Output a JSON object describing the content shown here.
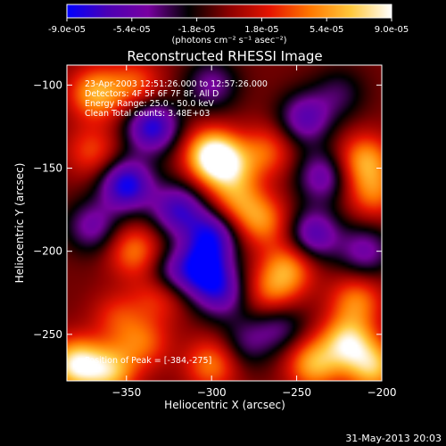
{
  "chart_data": {
    "type": "heatmap",
    "title": "Reconstructed RHESSI Image",
    "xlabel": "Heliocentric X (arcsec)",
    "ylabel": "Heliocentric Y (arcsec)",
    "xlim": [
      -385,
      -200
    ],
    "ylim": [
      -278,
      -88
    ],
    "xticks": [
      -350,
      -300,
      -250,
      -200
    ],
    "yticks": [
      -100,
      -150,
      -200,
      -250
    ],
    "colorbar": {
      "range": [
        -9e-05,
        9e-05
      ],
      "ticks": [
        "-9.0e-05",
        "-5.4e-05",
        "-1.8e-05",
        "1.8e-05",
        "5.4e-05",
        "9.0e-05"
      ],
      "unit_label": "(photons cm⁻² s⁻¹ asec⁻²)",
      "colors": [
        "#0000ff",
        "#4b00b4",
        "#7800a0",
        "#000000",
        "#8c0000",
        "#e61400",
        "#ff7800",
        "#ffc83c",
        "#ffffff"
      ]
    },
    "annotations": [
      "23-Apr-2003 12:51:26.000 to 12:57:26.000",
      "Detectors: 4F 5F 6F 7F 8F, All D",
      "Energy Range: 25.0 - 50.0 keV",
      "Clean     Total counts: 3.48E+03"
    ],
    "peak_label": "Position of Peak = [-384,-275]",
    "peak": [
      -384,
      -275
    ],
    "sources": [
      {
        "x": -300,
        "y": -142,
        "v": 1.0
      },
      {
        "x": -290,
        "y": -150,
        "v": 0.6
      },
      {
        "x": -268,
        "y": -140,
        "v": 0.45
      },
      {
        "x": -285,
        "y": -170,
        "v": 0.5
      },
      {
        "x": -270,
        "y": -182,
        "v": 0.55
      },
      {
        "x": -368,
        "y": -105,
        "v": 0.7
      },
      {
        "x": -345,
        "y": -100,
        "v": 0.45
      },
      {
        "x": -370,
        "y": -140,
        "v": 0.4
      },
      {
        "x": -210,
        "y": -145,
        "v": 0.65
      },
      {
        "x": -205,
        "y": -165,
        "v": 0.5
      },
      {
        "x": -345,
        "y": -200,
        "v": 0.55
      },
      {
        "x": -330,
        "y": -225,
        "v": 0.5
      },
      {
        "x": -355,
        "y": -240,
        "v": 0.35
      },
      {
        "x": -255,
        "y": -210,
        "v": 0.6
      },
      {
        "x": -265,
        "y": -225,
        "v": 0.45
      },
      {
        "x": -215,
        "y": -230,
        "v": 0.55
      },
      {
        "x": -220,
        "y": -255,
        "v": 0.85
      },
      {
        "x": -240,
        "y": -268,
        "v": 0.7
      },
      {
        "x": -205,
        "y": -270,
        "v": 0.75
      },
      {
        "x": -380,
        "y": -268,
        "v": 0.95
      },
      {
        "x": -360,
        "y": -272,
        "v": 0.75
      },
      {
        "x": -300,
        "y": -268,
        "v": 0.55
      },
      {
        "x": -340,
        "y": -255,
        "v": 0.45
      },
      {
        "x": -335,
        "y": -125,
        "v": -0.85
      },
      {
        "x": -350,
        "y": -160,
        "v": -0.9
      },
      {
        "x": -320,
        "y": -175,
        "v": -0.7
      },
      {
        "x": -300,
        "y": -190,
        "v": -0.75
      },
      {
        "x": -305,
        "y": -210,
        "v": -0.8
      },
      {
        "x": -295,
        "y": -225,
        "v": -0.6
      },
      {
        "x": -325,
        "y": -215,
        "v": -0.55
      },
      {
        "x": -245,
        "y": -120,
        "v": -0.6
      },
      {
        "x": -235,
        "y": -155,
        "v": -0.55
      },
      {
        "x": -240,
        "y": -190,
        "v": -0.65
      },
      {
        "x": -210,
        "y": -200,
        "v": -0.5
      },
      {
        "x": -260,
        "y": -245,
        "v": -0.4
      },
      {
        "x": -300,
        "y": -100,
        "v": -0.45
      },
      {
        "x": -370,
        "y": -185,
        "v": -0.5
      },
      {
        "x": -280,
        "y": -255,
        "v": -0.35
      },
      {
        "x": -225,
        "y": -105,
        "v": -0.3
      }
    ]
  },
  "footer": {
    "date": "31-May-2013 20:03"
  }
}
